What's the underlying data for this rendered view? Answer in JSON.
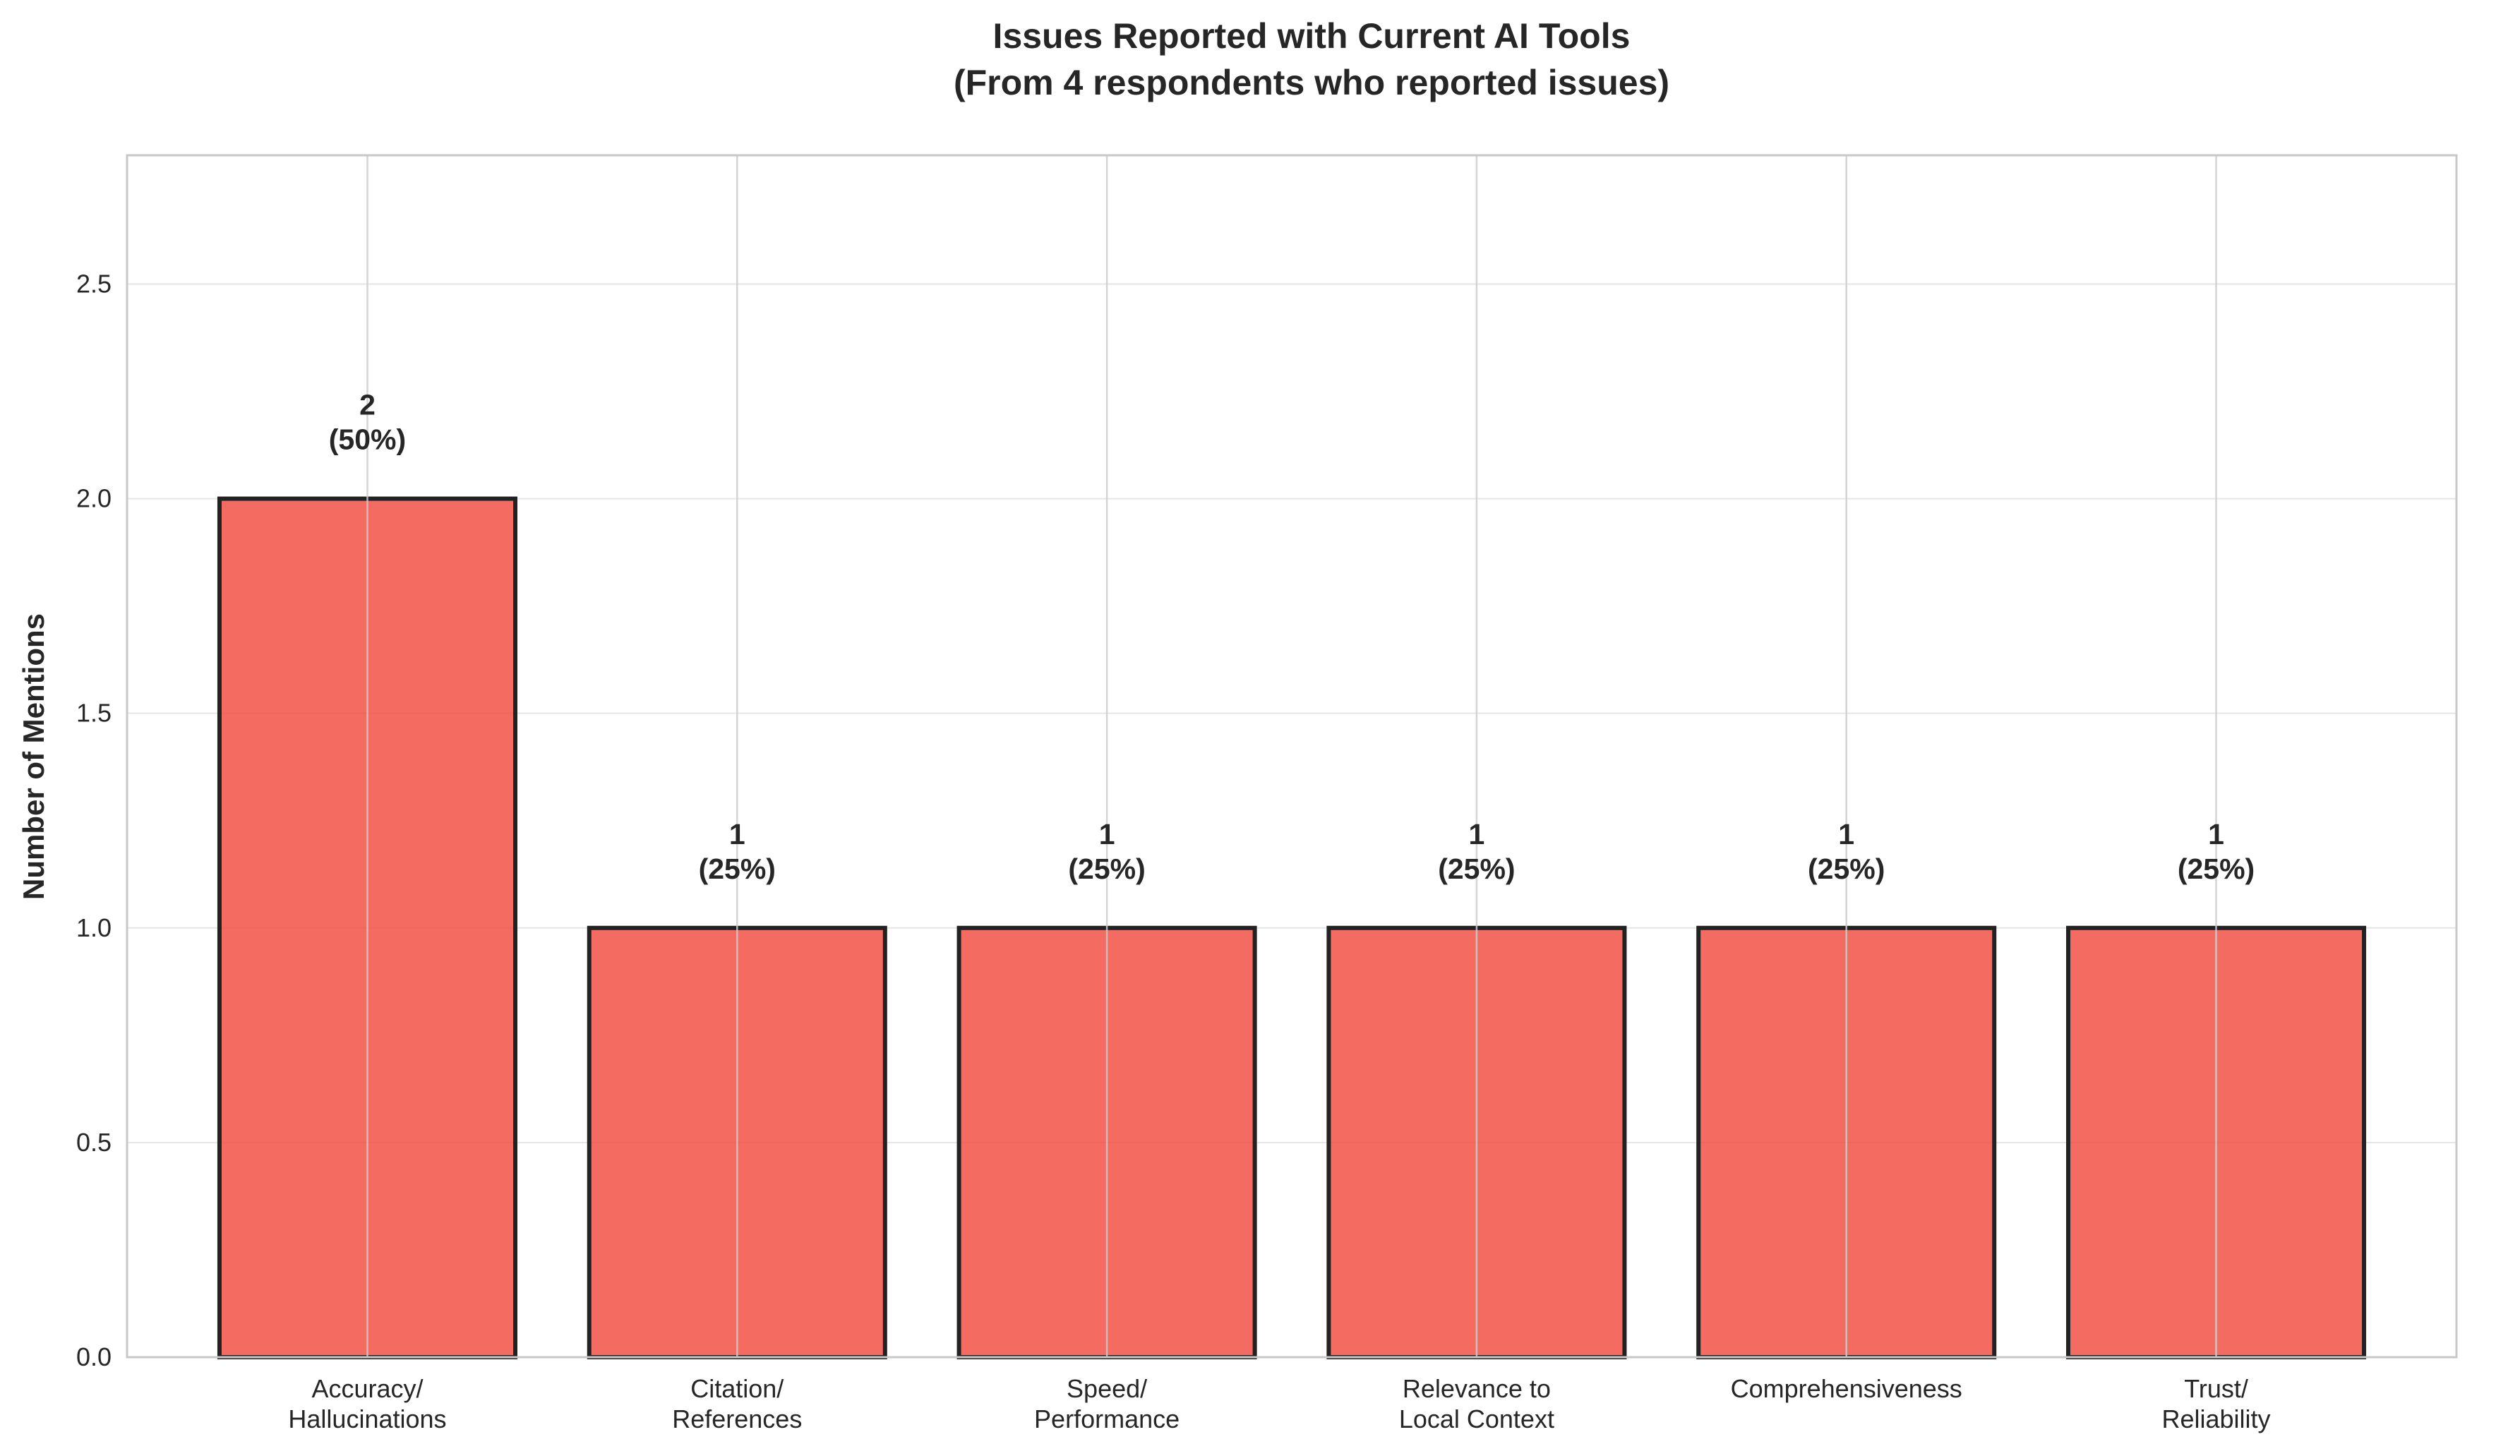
{
  "chart_data": {
    "type": "bar",
    "title": "Issues Reported with Current AI Tools",
    "subtitle": "(From 4 respondents who reported issues)",
    "xlabel": "",
    "ylabel": "Number of Mentions",
    "ylim": [
      0,
      2.8
    ],
    "yticks": [
      "0.0",
      "0.5",
      "1.0",
      "1.5",
      "2.0",
      "2.5"
    ],
    "grid": true,
    "legend": "none",
    "categories": [
      [
        "Accuracy/",
        "Hallucinations"
      ],
      [
        "Citation/",
        "References"
      ],
      [
        "Speed/",
        "Performance"
      ],
      [
        "Relevance to",
        "Local Context"
      ],
      [
        "Comprehensiveness"
      ],
      [
        "Trust/",
        "Reliability"
      ]
    ],
    "values": [
      2,
      1,
      1,
      1,
      1,
      1
    ],
    "value_labels": [
      "2",
      "1",
      "1",
      "1",
      "1",
      "1"
    ],
    "percent_labels": [
      "(50%)",
      "(25%)",
      "(25%)",
      "(25%)",
      "(25%)",
      "(25%)"
    ],
    "colors": {
      "bar_fill": "#f0463a",
      "bar_edge": "#222222",
      "grid": "#e6e6e6",
      "axes_border": "#c8c8c8",
      "text": "#262626"
    }
  }
}
